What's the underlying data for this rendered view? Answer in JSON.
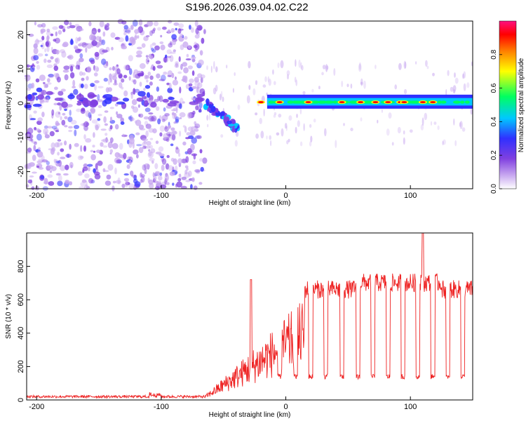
{
  "title": "S196.2026.039.04.02.C22",
  "chart_data": [
    {
      "type": "heatmap",
      "name": "spectrogram",
      "xlabel": "Height of straight line (km)",
      "ylabel": "Frequency (Hz)",
      "xlim": [
        -208,
        150
      ],
      "ylim": [
        -25,
        24
      ],
      "xticks": [
        -200,
        -100,
        0,
        100
      ],
      "xtick_labels": [
        "-200",
        "-100",
        "0",
        "100"
      ],
      "yticks": [
        -20,
        -10,
        0,
        10,
        20
      ],
      "ytick_labels": [
        "-20",
        "-10",
        "0",
        "10",
        "20"
      ],
      "noise_region_x": [
        -208,
        -65
      ],
      "signal_track": {
        "start_km": -15,
        "end_km": 150,
        "center_hz": 0.3,
        "bandwidth_hz": 1.5
      },
      "descending_streak": [
        [
          -65,
          0
        ],
        [
          -50,
          -4
        ],
        [
          -38,
          -8
        ]
      ],
      "hot_spots_km": [
        -20,
        -5,
        18,
        45,
        60,
        72,
        82,
        92,
        95,
        110,
        118
      ],
      "colorbar": {
        "label": "Normalized spectral amplitude",
        "range": [
          0,
          1
        ],
        "ticks": [
          0,
          0.2,
          0.4,
          0.6,
          0.8
        ],
        "tick_labels": [
          "0.0",
          "0.2",
          "0.4",
          "0.6",
          "0.8"
        ],
        "colors": [
          "#ffffff",
          "#c8a8f0",
          "#8040e0",
          "#3030ff",
          "#00c8ff",
          "#00ff60",
          "#ffff00",
          "#ff8000",
          "#ff0000",
          "#ff1080"
        ]
      }
    },
    {
      "type": "line",
      "name": "snr",
      "xlabel": "Height of straight line (km)",
      "ylabel": "SNR (10 * v/v)",
      "xlim": [
        -208,
        150
      ],
      "ylim": [
        0,
        1000
      ],
      "xticks": [
        -200,
        -100,
        0,
        100
      ],
      "xtick_labels": [
        "-200",
        "-100",
        "0",
        "100"
      ],
      "yticks": [
        0,
        200,
        400,
        600,
        800
      ],
      "ytick_labels": [
        "0",
        "200",
        "400",
        "600",
        "800"
      ],
      "color": "#ee2222",
      "baseline_level": 20,
      "peaks": [
        {
          "x": -28,
          "y": 720
        },
        {
          "x": 110,
          "y": 1000
        }
      ],
      "plateau_level": 700,
      "dip_positions_km": [
        -5,
        8,
        20,
        32,
        45,
        58,
        70,
        82,
        94,
        106,
        118,
        130,
        142
      ],
      "dip_level": 140
    }
  ]
}
